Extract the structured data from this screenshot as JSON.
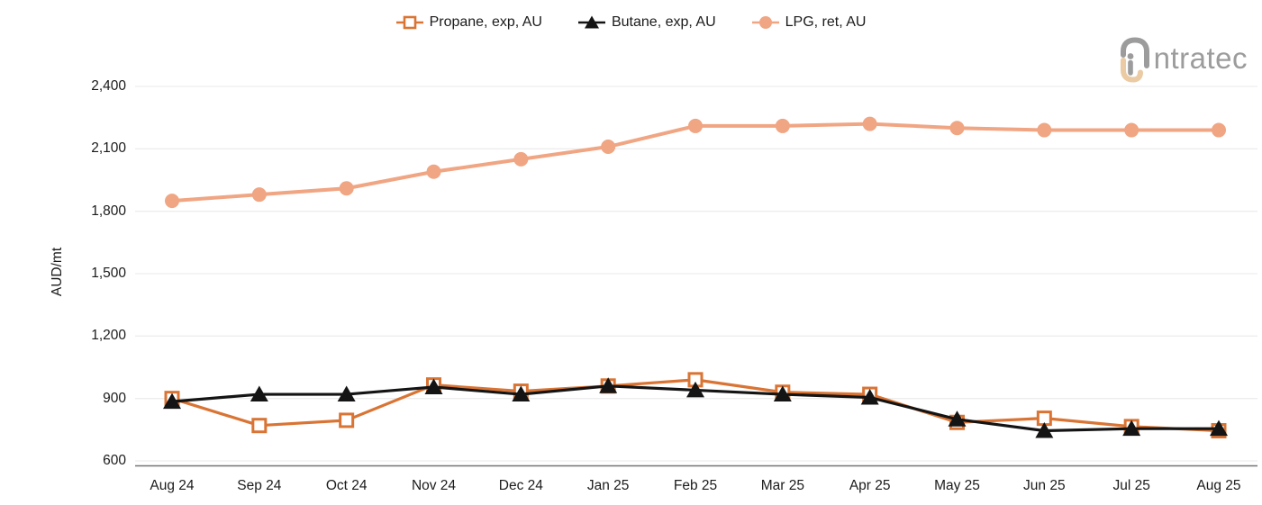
{
  "logo": {
    "text": "ntratec",
    "full_name": "intratec",
    "gray": "#9C9C9C",
    "tan": "#EACBA4"
  },
  "legend": [
    {
      "label": "Propane, exp, AU",
      "color": "#D97434",
      "marker": "square-open"
    },
    {
      "label": "Butane, exp, AU",
      "color": "#141414",
      "marker": "triangle"
    },
    {
      "label": "LPG, ret, AU",
      "color": "#F0A583",
      "marker": "circle"
    }
  ],
  "chart_data": {
    "type": "line",
    "title": "",
    "xlabel": "",
    "ylabel": "AUD/mt",
    "ylim": [
      600,
      2400
    ],
    "yticks": [
      600,
      900,
      1200,
      1500,
      1800,
      2100,
      2400
    ],
    "ytick_labels": [
      "600",
      "900",
      "1,200",
      "1,500",
      "1,800",
      "2,100",
      "2,400"
    ],
    "grid": true,
    "legend_position": "top",
    "categories": [
      "Aug 24",
      "Sep 24",
      "Oct 24",
      "Nov 24",
      "Dec 24",
      "Jan 25",
      "Feb 25",
      "Mar 25",
      "Apr 25",
      "May 25",
      "Jun 25",
      "Jul 25",
      "Aug 25"
    ],
    "series": [
      {
        "name": "Propane, exp, AU",
        "marker": "square-open",
        "color": "#D97434",
        "values": [
          900,
          770,
          795,
          965,
          935,
          960,
          990,
          930,
          920,
          785,
          805,
          765,
          745
        ]
      },
      {
        "name": "Butane, exp, AU",
        "marker": "triangle",
        "color": "#141414",
        "values": [
          885,
          920,
          920,
          955,
          920,
          960,
          940,
          920,
          905,
          800,
          745,
          755,
          755
        ]
      },
      {
        "name": "LPG, ret, AU",
        "marker": "circle",
        "color": "#F0A583",
        "values": [
          1850,
          1880,
          1910,
          1990,
          2050,
          2110,
          2210,
          2210,
          2220,
          2200,
          2190,
          2190,
          2190
        ]
      }
    ],
    "colors": {
      "grid_line": "#EDEDED",
      "axis_line": "#757575",
      "text": "#1B1B1B"
    }
  }
}
